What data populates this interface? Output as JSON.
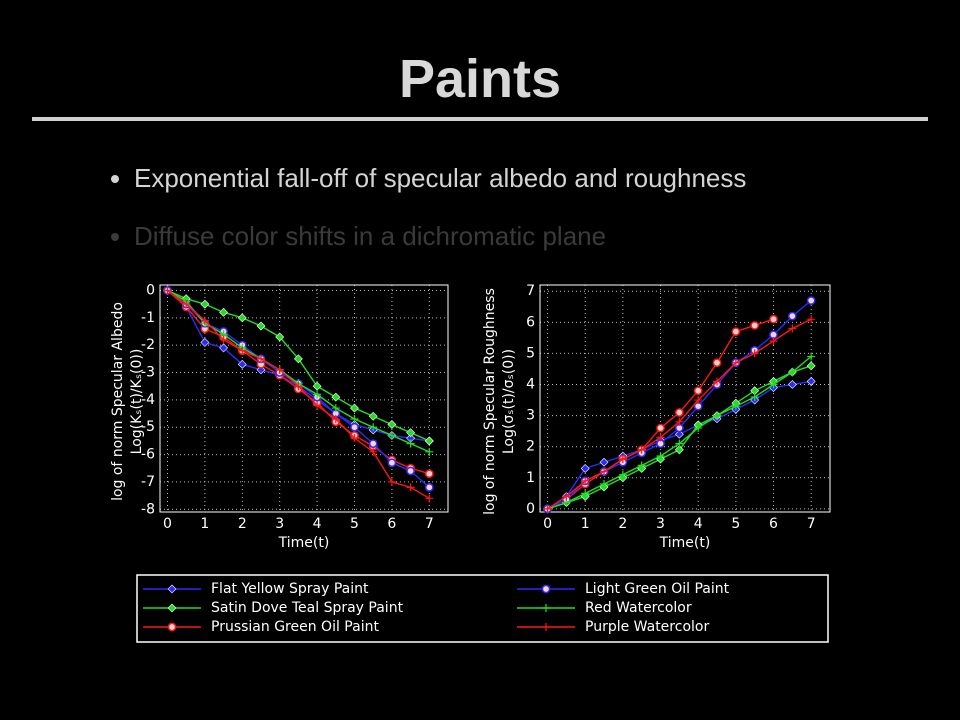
{
  "slide": {
    "title": "Paints",
    "bullets": [
      "Exponential fall-off of specular albedo and roughness",
      "Diffuse color shifts in a dichromatic plane"
    ]
  },
  "chart_data": [
    {
      "type": "line",
      "ylabel": [
        "log of norm Specular Albedo",
        "Log(Kₛ(t)/Kₛ(0))"
      ],
      "xlabel": "Time(t)",
      "x": [
        0,
        0.5,
        1,
        1.5,
        2,
        2.5,
        3,
        3.5,
        4,
        4.5,
        5,
        5.5,
        6,
        6.5,
        7
      ],
      "xlim": [
        -0.2,
        7.5
      ],
      "ylim": [
        -8.1,
        0.2
      ],
      "xticks": [
        0,
        1,
        2,
        3,
        4,
        5,
        6,
        7
      ],
      "yticks": [
        0,
        -1,
        -2,
        -3,
        -4,
        -5,
        -6,
        -7,
        -8
      ],
      "grid": true,
      "legend": "bottom",
      "series": [
        {
          "name": "Flat Yellow Spray Paint",
          "color": "#2b2bff",
          "marker": "diamond",
          "values": [
            0,
            -0.6,
            -1.9,
            -2.1,
            -2.7,
            -2.9,
            -3.1,
            -3.5,
            -4.0,
            -4.5,
            -4.9,
            -5.1,
            -5.3,
            -5.4,
            -5.5
          ]
        },
        {
          "name": "Satin Dove Teal Spray Paint",
          "color": "#22dd22",
          "marker": "diamond",
          "values": [
            0,
            -0.3,
            -0.5,
            -0.8,
            -1.0,
            -1.3,
            -1.7,
            -2.5,
            -3.5,
            -3.9,
            -4.3,
            -4.6,
            -4.9,
            -5.2,
            -5.5
          ]
        },
        {
          "name": "Prussian Green Oil Paint",
          "color": "#ff1515",
          "marker": "circle",
          "values": [
            0,
            -0.6,
            -1.4,
            -1.7,
            -2.2,
            -2.7,
            -3.1,
            -3.6,
            -4.1,
            -4.8,
            -5.3,
            -5.7,
            -6.2,
            -6.5,
            -6.7
          ]
        },
        {
          "name": "Light Green Oil Paint",
          "color": "#2b2bff",
          "marker": "circle",
          "values": [
            0,
            -0.5,
            -1.2,
            -1.5,
            -2.0,
            -2.5,
            -3.0,
            -3.4,
            -3.9,
            -4.5,
            -5.0,
            -5.6,
            -6.3,
            -6.6,
            -7.2
          ]
        },
        {
          "name": "Red Watercolor",
          "color": "#22dd22",
          "marker": "plus",
          "values": [
            0,
            -0.4,
            -1.2,
            -1.6,
            -2.1,
            -2.5,
            -2.9,
            -3.4,
            -3.8,
            -4.3,
            -4.7,
            -5.0,
            -5.3,
            -5.6,
            -5.9
          ]
        },
        {
          "name": "Purple Watercolor",
          "color": "#ff1515",
          "marker": "plus",
          "values": [
            0,
            -0.5,
            -1.1,
            -1.8,
            -2.2,
            -2.5,
            -2.9,
            -3.5,
            -4.2,
            -4.7,
            -5.4,
            -5.9,
            -7.0,
            -7.2,
            -7.6
          ]
        }
      ]
    },
    {
      "type": "line",
      "ylabel": [
        "log of norm Specular Roughness",
        "Log(σₛ(t)/σₛ(0))"
      ],
      "xlabel": "Time(t)",
      "x": [
        0,
        0.5,
        1,
        1.5,
        2,
        2.5,
        3,
        3.5,
        4,
        4.5,
        5,
        5.5,
        6,
        6.5,
        7
      ],
      "xlim": [
        -0.2,
        7.5
      ],
      "ylim": [
        -0.1,
        7.2
      ],
      "xticks": [
        0,
        1,
        2,
        3,
        4,
        5,
        6,
        7
      ],
      "yticks": [
        0,
        1,
        2,
        3,
        4,
        5,
        6,
        7
      ],
      "grid": true,
      "series": [
        {
          "name": "Flat Yellow Spray Paint",
          "color": "#2b2bff",
          "marker": "diamond",
          "values": [
            0,
            0.4,
            1.3,
            1.5,
            1.7,
            1.9,
            2.2,
            2.4,
            2.7,
            2.9,
            3.2,
            3.5,
            3.9,
            4.0,
            4.1
          ]
        },
        {
          "name": "Satin Dove Teal Spray Paint",
          "color": "#22dd22",
          "marker": "diamond",
          "values": [
            0,
            0.2,
            0.4,
            0.7,
            1.0,
            1.3,
            1.6,
            1.9,
            2.7,
            3.0,
            3.4,
            3.8,
            4.1,
            4.4,
            4.6
          ]
        },
        {
          "name": "Prussian Green Oil Paint",
          "color": "#ff1515",
          "marker": "circle",
          "values": [
            0,
            0.3,
            0.8,
            1.2,
            1.6,
            1.9,
            2.6,
            3.1,
            3.8,
            4.7,
            5.7,
            5.9,
            6.1,
            null,
            null
          ]
        },
        {
          "name": "Light Green Oil Paint",
          "color": "#2b2bff",
          "marker": "circle",
          "values": [
            0,
            0.3,
            0.9,
            1.2,
            1.5,
            1.8,
            2.1,
            2.6,
            3.3,
            4.0,
            4.7,
            5.1,
            5.6,
            6.2,
            6.7
          ]
        },
        {
          "name": "Red Watercolor",
          "color": "#22dd22",
          "marker": "plus",
          "values": [
            0,
            0.2,
            0.5,
            0.8,
            1.1,
            1.4,
            1.7,
            2.1,
            2.6,
            3.0,
            3.3,
            3.6,
            4.0,
            4.4,
            4.9
          ]
        },
        {
          "name": "Purple Watercolor",
          "color": "#ff1515",
          "marker": "plus",
          "values": [
            0,
            0.4,
            0.9,
            1.2,
            1.6,
            1.9,
            2.3,
            2.8,
            3.5,
            4.1,
            4.7,
            5.0,
            5.4,
            5.8,
            6.1
          ]
        }
      ]
    }
  ]
}
